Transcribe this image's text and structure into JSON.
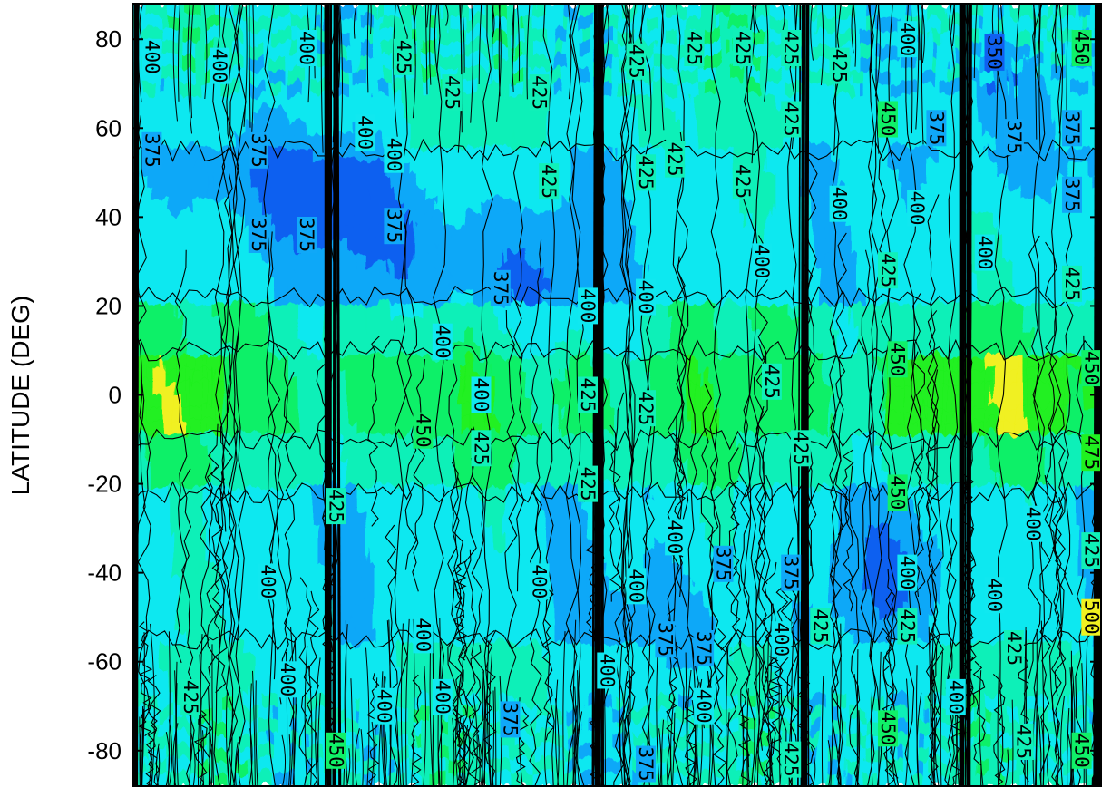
{
  "chart_data": {
    "type": "heatmap",
    "title": "",
    "xlabel": "",
    "ylabel": "LATITUDE (DEG)",
    "ylim": [
      -88,
      88
    ],
    "yticks": [
      "80",
      "60",
      "40",
      "20",
      "0",
      "-20",
      "-40",
      "-60",
      "-80"
    ],
    "ytick_values": [
      80,
      60,
      40,
      20,
      0,
      -20,
      -40,
      -60,
      -80
    ],
    "xticks": [],
    "colorscale": [
      {
        "level": 350,
        "color": "#1060f0"
      },
      {
        "level": 375,
        "color": "#10a8f8"
      },
      {
        "level": 400,
        "color": "#10e8f0"
      },
      {
        "level": 425,
        "color": "#10f0b8"
      },
      {
        "level": 450,
        "color": "#10f068"
      },
      {
        "level": 475,
        "color": "#20f020"
      },
      {
        "level": 500,
        "color": "#f0f020"
      }
    ],
    "contour_levels": [
      350,
      375,
      400,
      425,
      450,
      475,
      500
    ],
    "dark_bands_x_fraction": [
      0.0,
      0.205,
      0.48,
      0.695,
      0.86,
      1.0
    ],
    "contour_labels": [
      {
        "text": "400",
        "x": 0.02,
        "lat": 76
      },
      {
        "text": "400",
        "x": 0.09,
        "lat": 74
      },
      {
        "text": "400",
        "x": 0.18,
        "lat": 78
      },
      {
        "text": "400",
        "x": 0.24,
        "lat": 59
      },
      {
        "text": "425",
        "x": 0.28,
        "lat": 76
      },
      {
        "text": "425",
        "x": 0.33,
        "lat": 68
      },
      {
        "text": "425",
        "x": 0.42,
        "lat": 68
      },
      {
        "text": "425",
        "x": 0.52,
        "lat": 75
      },
      {
        "text": "425",
        "x": 0.58,
        "lat": 78
      },
      {
        "text": "425",
        "x": 0.63,
        "lat": 78
      },
      {
        "text": "425",
        "x": 0.68,
        "lat": 78
      },
      {
        "text": "425",
        "x": 0.73,
        "lat": 74
      },
      {
        "text": "400",
        "x": 0.8,
        "lat": 80
      },
      {
        "text": "350",
        "x": 0.89,
        "lat": 77
      },
      {
        "text": "450",
        "x": 0.98,
        "lat": 78
      },
      {
        "text": "375",
        "x": 0.02,
        "lat": 55
      },
      {
        "text": "375",
        "x": 0.13,
        "lat": 55
      },
      {
        "text": "375",
        "x": 0.13,
        "lat": 36
      },
      {
        "text": "375",
        "x": 0.18,
        "lat": 36
      },
      {
        "text": "400",
        "x": 0.27,
        "lat": 54
      },
      {
        "text": "375",
        "x": 0.27,
        "lat": 38
      },
      {
        "text": "425",
        "x": 0.43,
        "lat": 48
      },
      {
        "text": "425",
        "x": 0.53,
        "lat": 50
      },
      {
        "text": "425",
        "x": 0.56,
        "lat": 53
      },
      {
        "text": "425",
        "x": 0.63,
        "lat": 48
      },
      {
        "text": "425",
        "x": 0.68,
        "lat": 62
      },
      {
        "text": "450",
        "x": 0.78,
        "lat": 62
      },
      {
        "text": "375",
        "x": 0.83,
        "lat": 60
      },
      {
        "text": "375",
        "x": 0.91,
        "lat": 58
      },
      {
        "text": "375",
        "x": 0.97,
        "lat": 60
      },
      {
        "text": "400",
        "x": 0.81,
        "lat": 42
      },
      {
        "text": "375",
        "x": 0.97,
        "lat": 45
      },
      {
        "text": "375",
        "x": 0.38,
        "lat": 24
      },
      {
        "text": "400",
        "x": 0.47,
        "lat": 20
      },
      {
        "text": "400",
        "x": 0.53,
        "lat": 22
      },
      {
        "text": "400",
        "x": 0.65,
        "lat": 30
      },
      {
        "text": "400",
        "x": 0.73,
        "lat": 43
      },
      {
        "text": "400",
        "x": 0.88,
        "lat": 32
      },
      {
        "text": "425",
        "x": 0.78,
        "lat": 28
      },
      {
        "text": "425",
        "x": 0.97,
        "lat": 25
      },
      {
        "text": "400",
        "x": 0.32,
        "lat": 12
      },
      {
        "text": "400",
        "x": 0.36,
        "lat": 0
      },
      {
        "text": "425",
        "x": 0.47,
        "lat": 0
      },
      {
        "text": "425",
        "x": 0.53,
        "lat": -3
      },
      {
        "text": "425",
        "x": 0.66,
        "lat": 3
      },
      {
        "text": "450",
        "x": 0.79,
        "lat": 8
      },
      {
        "text": "450",
        "x": 0.99,
        "lat": 6
      },
      {
        "text": "450",
        "x": 0.3,
        "lat": -8
      },
      {
        "text": "425",
        "x": 0.36,
        "lat": -12
      },
      {
        "text": "425",
        "x": 0.47,
        "lat": -20
      },
      {
        "text": "425",
        "x": 0.69,
        "lat": -12
      },
      {
        "text": "475",
        "x": 0.99,
        "lat": -13
      },
      {
        "text": "425",
        "x": 0.21,
        "lat": -25
      },
      {
        "text": "450",
        "x": 0.79,
        "lat": -22
      },
      {
        "text": "400",
        "x": 0.56,
        "lat": -32
      },
      {
        "text": "400",
        "x": 0.93,
        "lat": -29
      },
      {
        "text": "425",
        "x": 0.99,
        "lat": -35
      },
      {
        "text": "400",
        "x": 0.14,
        "lat": -42
      },
      {
        "text": "375",
        "x": 0.61,
        "lat": -38
      },
      {
        "text": "375",
        "x": 0.68,
        "lat": -40
      },
      {
        "text": "400",
        "x": 0.8,
        "lat": -40
      },
      {
        "text": "400",
        "x": 0.42,
        "lat": -42
      },
      {
        "text": "400",
        "x": 0.52,
        "lat": -43
      },
      {
        "text": "400",
        "x": 0.89,
        "lat": -45
      },
      {
        "text": "500",
        "x": 0.99,
        "lat": -50
      },
      {
        "text": "400",
        "x": 0.3,
        "lat": -54
      },
      {
        "text": "375",
        "x": 0.55,
        "lat": -55
      },
      {
        "text": "375",
        "x": 0.59,
        "lat": -57
      },
      {
        "text": "400",
        "x": 0.67,
        "lat": -55
      },
      {
        "text": "425",
        "x": 0.71,
        "lat": -52
      },
      {
        "text": "425",
        "x": 0.8,
        "lat": -52
      },
      {
        "text": "425",
        "x": 0.91,
        "lat": -57
      },
      {
        "text": "400",
        "x": 0.49,
        "lat": -62
      },
      {
        "text": "425",
        "x": 0.06,
        "lat": -68
      },
      {
        "text": "400",
        "x": 0.16,
        "lat": -64
      },
      {
        "text": "400",
        "x": 0.26,
        "lat": -70
      },
      {
        "text": "400",
        "x": 0.32,
        "lat": -68
      },
      {
        "text": "375",
        "x": 0.39,
        "lat": -73
      },
      {
        "text": "400",
        "x": 0.59,
        "lat": -70
      },
      {
        "text": "400",
        "x": 0.85,
        "lat": -68
      },
      {
        "text": "450",
        "x": 0.21,
        "lat": -80
      },
      {
        "text": "375",
        "x": 0.53,
        "lat": -83
      },
      {
        "text": "425",
        "x": 0.68,
        "lat": -82
      },
      {
        "text": "450",
        "x": 0.78,
        "lat": -75
      },
      {
        "text": "425",
        "x": 0.92,
        "lat": -78
      },
      {
        "text": "450",
        "x": 0.98,
        "lat": -80
      }
    ]
  }
}
